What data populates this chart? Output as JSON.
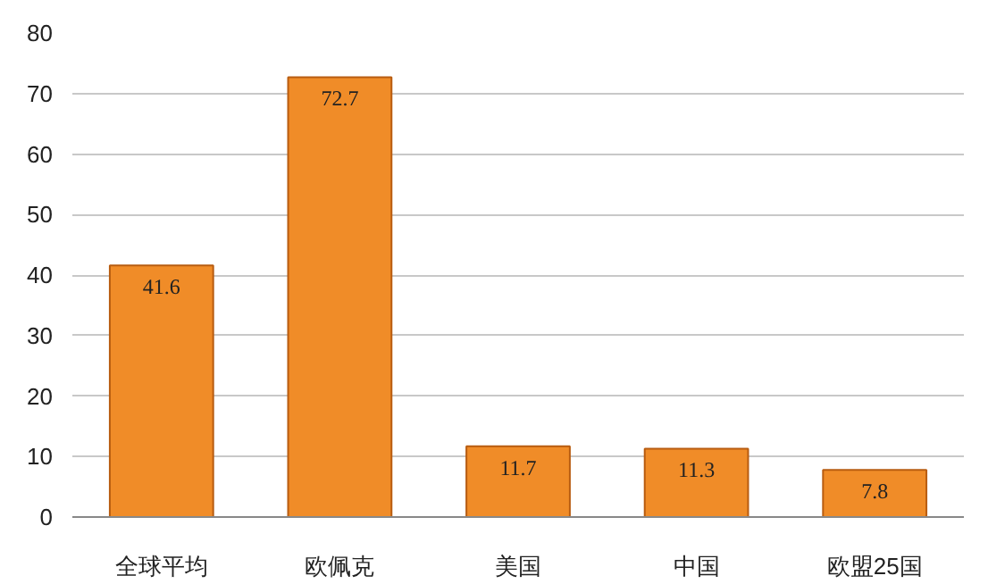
{
  "chart_data": {
    "type": "bar",
    "categories": [
      "全球平均",
      "欧佩克",
      "美国",
      "中国",
      "欧盟25国"
    ],
    "values": [
      41.6,
      72.7,
      11.7,
      11.3,
      7.8
    ],
    "color": "#f08c28",
    "ylim": [
      0,
      80
    ],
    "yticks": [
      0,
      10,
      20,
      30,
      40,
      50,
      60,
      70,
      80
    ],
    "grid": "y",
    "data_labels": true
  }
}
